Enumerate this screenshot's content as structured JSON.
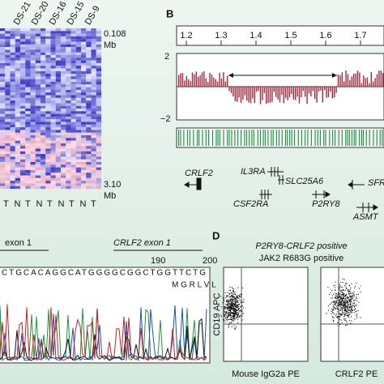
{
  "panel_a": {
    "columns": [
      "DS-21",
      "DS-20",
      "DS-16",
      "DS-15",
      "DS-9"
    ],
    "top_label": "0.108",
    "top_unit": "Mb",
    "bottom_label": "3.10",
    "bottom_unit": "Mb",
    "sample_types": [
      "T",
      "N",
      "T",
      "N",
      "T",
      "N",
      "T",
      "N",
      "T"
    ]
  },
  "panel_b": {
    "label": "B",
    "ruler_ticks": [
      "1.2",
      "1.3",
      "1.4",
      "1.5",
      "1.6",
      "1.7"
    ],
    "y_top": "2",
    "y_bottom": "−2",
    "genes": [
      "CRLF2",
      "IL3RA",
      "SLC25A6",
      "SFR",
      "CSF2RA",
      "P2RY8",
      "ASMT"
    ]
  },
  "panel_c": {
    "exon_left": "exon 1",
    "exon_right": "CRLF2 exon 1",
    "pos_1": "190",
    "pos_2": "200",
    "sequence": "CTGCACAGGCATGGGGCGGCTGGTTCTG",
    "amino_acids": "M  G  R  L  V  L"
  },
  "panel_d": {
    "label": "D",
    "title_1": "P2RY8-CRLF2 positive",
    "title_2": "JAK2 R683G positive",
    "y_label": "CD19 APC",
    "x_label_1": "Mouse IgG2a PE",
    "x_label_2": "CRLF2 PE"
  }
}
